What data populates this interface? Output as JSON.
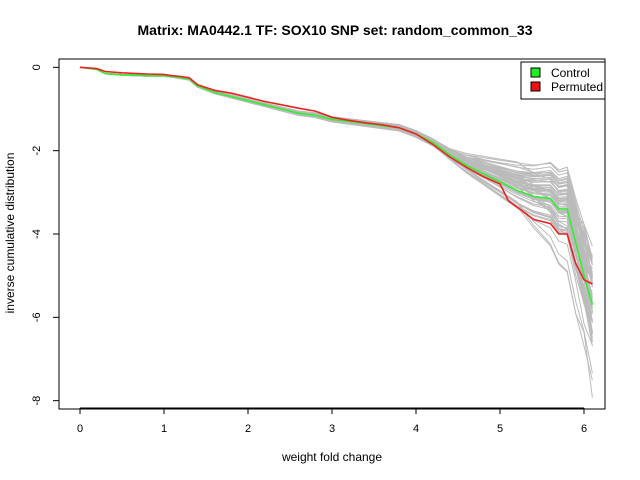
{
  "chart_data": {
    "type": "line",
    "title": "Matrix: MA0442.1 TF: SOX10 SNP set: random_common_33",
    "xlabel": "weight fold change",
    "ylabel": "inverse cumulative distribution",
    "xlim": [
      -0.25,
      6.25
    ],
    "ylim": [
      -8.2,
      0.2
    ],
    "xticks": [
      0,
      1,
      2,
      3,
      4,
      5,
      6
    ],
    "yticks": [
      0,
      -2,
      -4,
      -6,
      -8
    ],
    "legend_position": "top-right",
    "legend": [
      {
        "label": "Control",
        "color": "#22ee22"
      },
      {
        "label": "Permuted",
        "color": "#ee1111"
      }
    ],
    "background_color": "#bbbbbb",
    "series": [
      {
        "name": "Control",
        "color": "#33ee33",
        "x": [
          0,
          0.2,
          0.3,
          0.5,
          0.8,
          1.0,
          1.1,
          1.2,
          1.3,
          1.4,
          1.6,
          1.8,
          2.0,
          2.2,
          2.4,
          2.6,
          2.8,
          3.0,
          3.2,
          3.4,
          3.6,
          3.8,
          4.0,
          4.2,
          4.4,
          4.6,
          4.8,
          5.0,
          5.2,
          5.4,
          5.6,
          5.7,
          5.8,
          5.9,
          6.0,
          6.1
        ],
        "y": [
          0,
          -0.05,
          -0.15,
          -0.18,
          -0.2,
          -0.2,
          -0.22,
          -0.25,
          -0.28,
          -0.45,
          -0.6,
          -0.7,
          -0.8,
          -0.9,
          -1.0,
          -1.1,
          -1.15,
          -1.25,
          -1.3,
          -1.35,
          -1.4,
          -1.45,
          -1.6,
          -1.8,
          -2.1,
          -2.35,
          -2.55,
          -2.75,
          -2.95,
          -3.1,
          -3.15,
          -3.4,
          -3.4,
          -4.2,
          -5.0,
          -5.7
        ]
      },
      {
        "name": "Permuted",
        "color": "#ee2222",
        "x": [
          0,
          0.2,
          0.3,
          0.5,
          0.8,
          1.0,
          1.1,
          1.2,
          1.3,
          1.4,
          1.6,
          1.8,
          2.0,
          2.2,
          2.4,
          2.6,
          2.8,
          3.0,
          3.2,
          3.4,
          3.6,
          3.8,
          4.0,
          4.2,
          4.4,
          4.6,
          4.8,
          5.0,
          5.1,
          5.2,
          5.4,
          5.6,
          5.7,
          5.8,
          5.9,
          6.0,
          6.1
        ],
        "y": [
          0,
          -0.03,
          -0.1,
          -0.13,
          -0.16,
          -0.17,
          -0.2,
          -0.22,
          -0.25,
          -0.42,
          -0.55,
          -0.62,
          -0.72,
          -0.82,
          -0.9,
          -0.98,
          -1.05,
          -1.2,
          -1.27,
          -1.33,
          -1.38,
          -1.45,
          -1.6,
          -1.85,
          -2.15,
          -2.4,
          -2.62,
          -2.8,
          -3.2,
          -3.35,
          -3.65,
          -3.75,
          -4.0,
          -4.0,
          -4.7,
          -5.1,
          -5.2
        ]
      }
    ]
  }
}
